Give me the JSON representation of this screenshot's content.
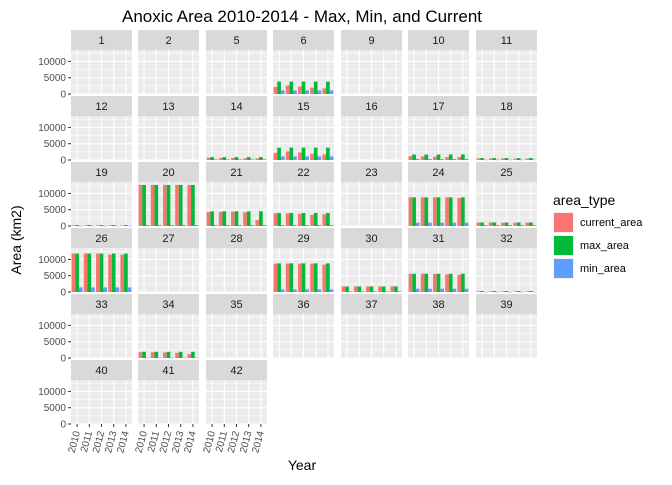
{
  "chart_data": {
    "type": "bar",
    "title": "Anoxic Area 2010-2014 - Max, Min, and Current",
    "xlabel": "Year",
    "ylabel": "Area (km2)",
    "x_ticks": [
      "2010",
      "2011",
      "2012",
      "2013",
      "2014"
    ],
    "y_ticks": [
      0,
      5000,
      10000
    ],
    "ylim": [
      0,
      13500
    ],
    "grid": true,
    "legend": {
      "title": "area_type",
      "position": "right",
      "entries": [
        {
          "key": "current_area",
          "label": "current_area",
          "color": "#F8766D"
        },
        {
          "key": "max_area",
          "label": "max_area",
          "color": "#00BA38"
        },
        {
          "key": "min_area",
          "label": "min_area",
          "color": "#619CFF"
        }
      ]
    },
    "panels": [
      {
        "label": "1",
        "series": null
      },
      {
        "label": "2",
        "series": null
      },
      {
        "label": "5",
        "series": null
      },
      {
        "label": "6",
        "series": {
          "current_area": [
            2200,
            2600,
            2300,
            1900,
            1700
          ],
          "max_area": [
            3800,
            3800,
            3800,
            3800,
            3800
          ],
          "min_area": [
            1100,
            1100,
            1100,
            1100,
            1100
          ]
        }
      },
      {
        "label": "9",
        "series": null
      },
      {
        "label": "10",
        "series": null
      },
      {
        "label": "11",
        "series": null
      },
      {
        "label": "12",
        "series": null
      },
      {
        "label": "13",
        "series": null
      },
      {
        "label": "14",
        "series": {
          "current_area": [
            700,
            600,
            600,
            500,
            500
          ],
          "max_area": [
            900,
            900,
            900,
            900,
            900
          ],
          "min_area": [
            200,
            200,
            200,
            200,
            200
          ]
        }
      },
      {
        "label": "15",
        "series": {
          "current_area": [
            2200,
            2600,
            2300,
            1900,
            1700
          ],
          "max_area": [
            3800,
            3800,
            3800,
            3800,
            3800
          ],
          "min_area": [
            1100,
            1100,
            1100,
            1100,
            1100
          ]
        }
      },
      {
        "label": "16",
        "series": null
      },
      {
        "label": "17",
        "series": {
          "current_area": [
            1200,
            1100,
            1000,
            900,
            900
          ],
          "max_area": [
            1700,
            1700,
            1700,
            1700,
            1700
          ],
          "min_area": [
            300,
            300,
            300,
            300,
            300
          ]
        }
      },
      {
        "label": "18",
        "series": {
          "current_area": [
            500,
            500,
            500,
            400,
            400
          ],
          "max_area": [
            600,
            600,
            600,
            600,
            600
          ],
          "min_area": [
            100,
            100,
            100,
            100,
            100
          ]
        }
      },
      {
        "label": "19",
        "series": {
          "current_area": [
            200,
            200,
            200,
            200,
            150
          ],
          "max_area": [
            300,
            300,
            300,
            300,
            300
          ],
          "min_area": [
            50,
            50,
            50,
            50,
            50
          ]
        }
      },
      {
        "label": "20",
        "series": {
          "current_area": [
            12600,
            12600,
            12600,
            12600,
            12600
          ],
          "max_area": [
            12600,
            12600,
            12600,
            12600,
            12600
          ],
          "min_area": [
            300,
            300,
            300,
            300,
            300
          ]
        }
      },
      {
        "label": "21",
        "series": {
          "current_area": [
            4300,
            4300,
            4400,
            4200,
            1800
          ],
          "max_area": [
            4500,
            4500,
            4500,
            4500,
            4500
          ],
          "min_area": [
            300,
            300,
            300,
            300,
            300
          ]
        }
      },
      {
        "label": "22",
        "series": {
          "current_area": [
            3900,
            3900,
            3700,
            3400,
            3600
          ],
          "max_area": [
            4000,
            4000,
            4000,
            4000,
            4000
          ],
          "min_area": [
            300,
            300,
            300,
            300,
            300
          ]
        }
      },
      {
        "label": "23",
        "series": {
          "current_area": [
            0,
            0,
            0,
            0,
            0
          ],
          "max_area": [
            0,
            0,
            0,
            0,
            0
          ],
          "min_area": [
            0,
            0,
            0,
            0,
            0
          ]
        }
      },
      {
        "label": "24",
        "series": {
          "current_area": [
            8800,
            8800,
            8800,
            8800,
            8600
          ],
          "max_area": [
            8800,
            8800,
            8800,
            8800,
            8800
          ],
          "min_area": [
            1000,
            1000,
            1000,
            1000,
            1000
          ]
        }
      },
      {
        "label": "25",
        "series": {
          "current_area": [
            1100,
            1100,
            1000,
            1000,
            1000
          ],
          "max_area": [
            1100,
            1100,
            1100,
            1100,
            1100
          ],
          "min_area": [
            300,
            300,
            300,
            300,
            300
          ]
        }
      },
      {
        "label": "26",
        "series": {
          "current_area": [
            11800,
            11800,
            11800,
            11500,
            11500
          ],
          "max_area": [
            11800,
            11800,
            11800,
            11800,
            11800
          ],
          "min_area": [
            1400,
            1400,
            1400,
            1400,
            1400
          ]
        }
      },
      {
        "label": "27",
        "series": null
      },
      {
        "label": "28",
        "series": null
      },
      {
        "label": "29",
        "series": {
          "current_area": [
            8700,
            8700,
            8700,
            8700,
            8400
          ],
          "max_area": [
            8800,
            8800,
            8800,
            8800,
            8800
          ],
          "min_area": [
            800,
            800,
            800,
            800,
            800
          ]
        }
      },
      {
        "label": "30",
        "series": {
          "current_area": [
            1700,
            1700,
            1700,
            1700,
            1700
          ],
          "max_area": [
            1700,
            1700,
            1700,
            1700,
            1700
          ],
          "min_area": [
            200,
            200,
            200,
            200,
            200
          ]
        }
      },
      {
        "label": "31",
        "series": {
          "current_area": [
            5600,
            5600,
            5500,
            5400,
            5300
          ],
          "max_area": [
            5600,
            5600,
            5600,
            5600,
            5600
          ],
          "min_area": [
            1000,
            1000,
            1000,
            1000,
            1000
          ]
        }
      },
      {
        "label": "32",
        "series": {
          "current_area": [
            200,
            200,
            200,
            200,
            200
          ],
          "max_area": [
            300,
            300,
            300,
            300,
            300
          ],
          "min_area": [
            50,
            50,
            50,
            50,
            50
          ]
        }
      },
      {
        "label": "33",
        "series": null
      },
      {
        "label": "34",
        "series": {
          "current_area": [
            1800,
            1800,
            1700,
            1600,
            1200
          ],
          "max_area": [
            1900,
            1900,
            1900,
            1900,
            1900
          ],
          "min_area": [
            100,
            100,
            100,
            100,
            100
          ]
        }
      },
      {
        "label": "35",
        "series": null
      },
      {
        "label": "36",
        "series": null
      },
      {
        "label": "37",
        "series": null
      },
      {
        "label": "38",
        "series": null
      },
      {
        "label": "39",
        "series": null
      },
      {
        "label": "40",
        "series": null
      },
      {
        "label": "41",
        "series": null
      },
      {
        "label": "42",
        "series": null
      }
    ]
  }
}
